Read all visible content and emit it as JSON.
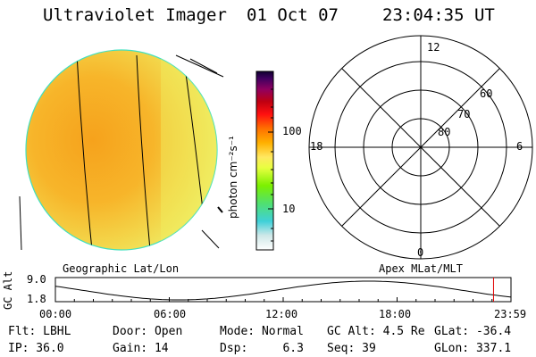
{
  "header": {
    "instrument": "Ultraviolet Imager",
    "date": "01 Oct 07",
    "time": "23:04:35 UT"
  },
  "colorbar": {
    "label": "photon cm⁻²s⁻¹",
    "ticks": [
      "100",
      "10"
    ]
  },
  "polar_plot": {
    "mlt_labels": {
      "top": "12",
      "left": "18",
      "right": "6",
      "bottom": "0"
    },
    "mlat_labels": [
      "60",
      "70",
      "80"
    ]
  },
  "image_titles": {
    "left": "Geographic Lat/Lon",
    "right": "Apex MLat/MLT"
  },
  "altitude_plot": {
    "ylabel": "GC Alt",
    "y_max": "9.0",
    "y_min": "1.8",
    "x_ticks": [
      "00:00",
      "06:00",
      "12:00",
      "18:00",
      "23:59"
    ],
    "current_marker_hour": 23.08,
    "marker_color": "#e00000"
  },
  "status": {
    "flt": "Flt: LBHL",
    "ip": "IP: 36.0",
    "door": "Door: Open",
    "gain": "Gain: 14",
    "mode": "Mode: Normal",
    "dsp": "Dsp:     6.3",
    "gcalt": "GC Alt: 4.5 Re",
    "seq": "Seq: 39",
    "glat": "GLat: -36.4",
    "glon": "GLon: 337.1"
  }
}
